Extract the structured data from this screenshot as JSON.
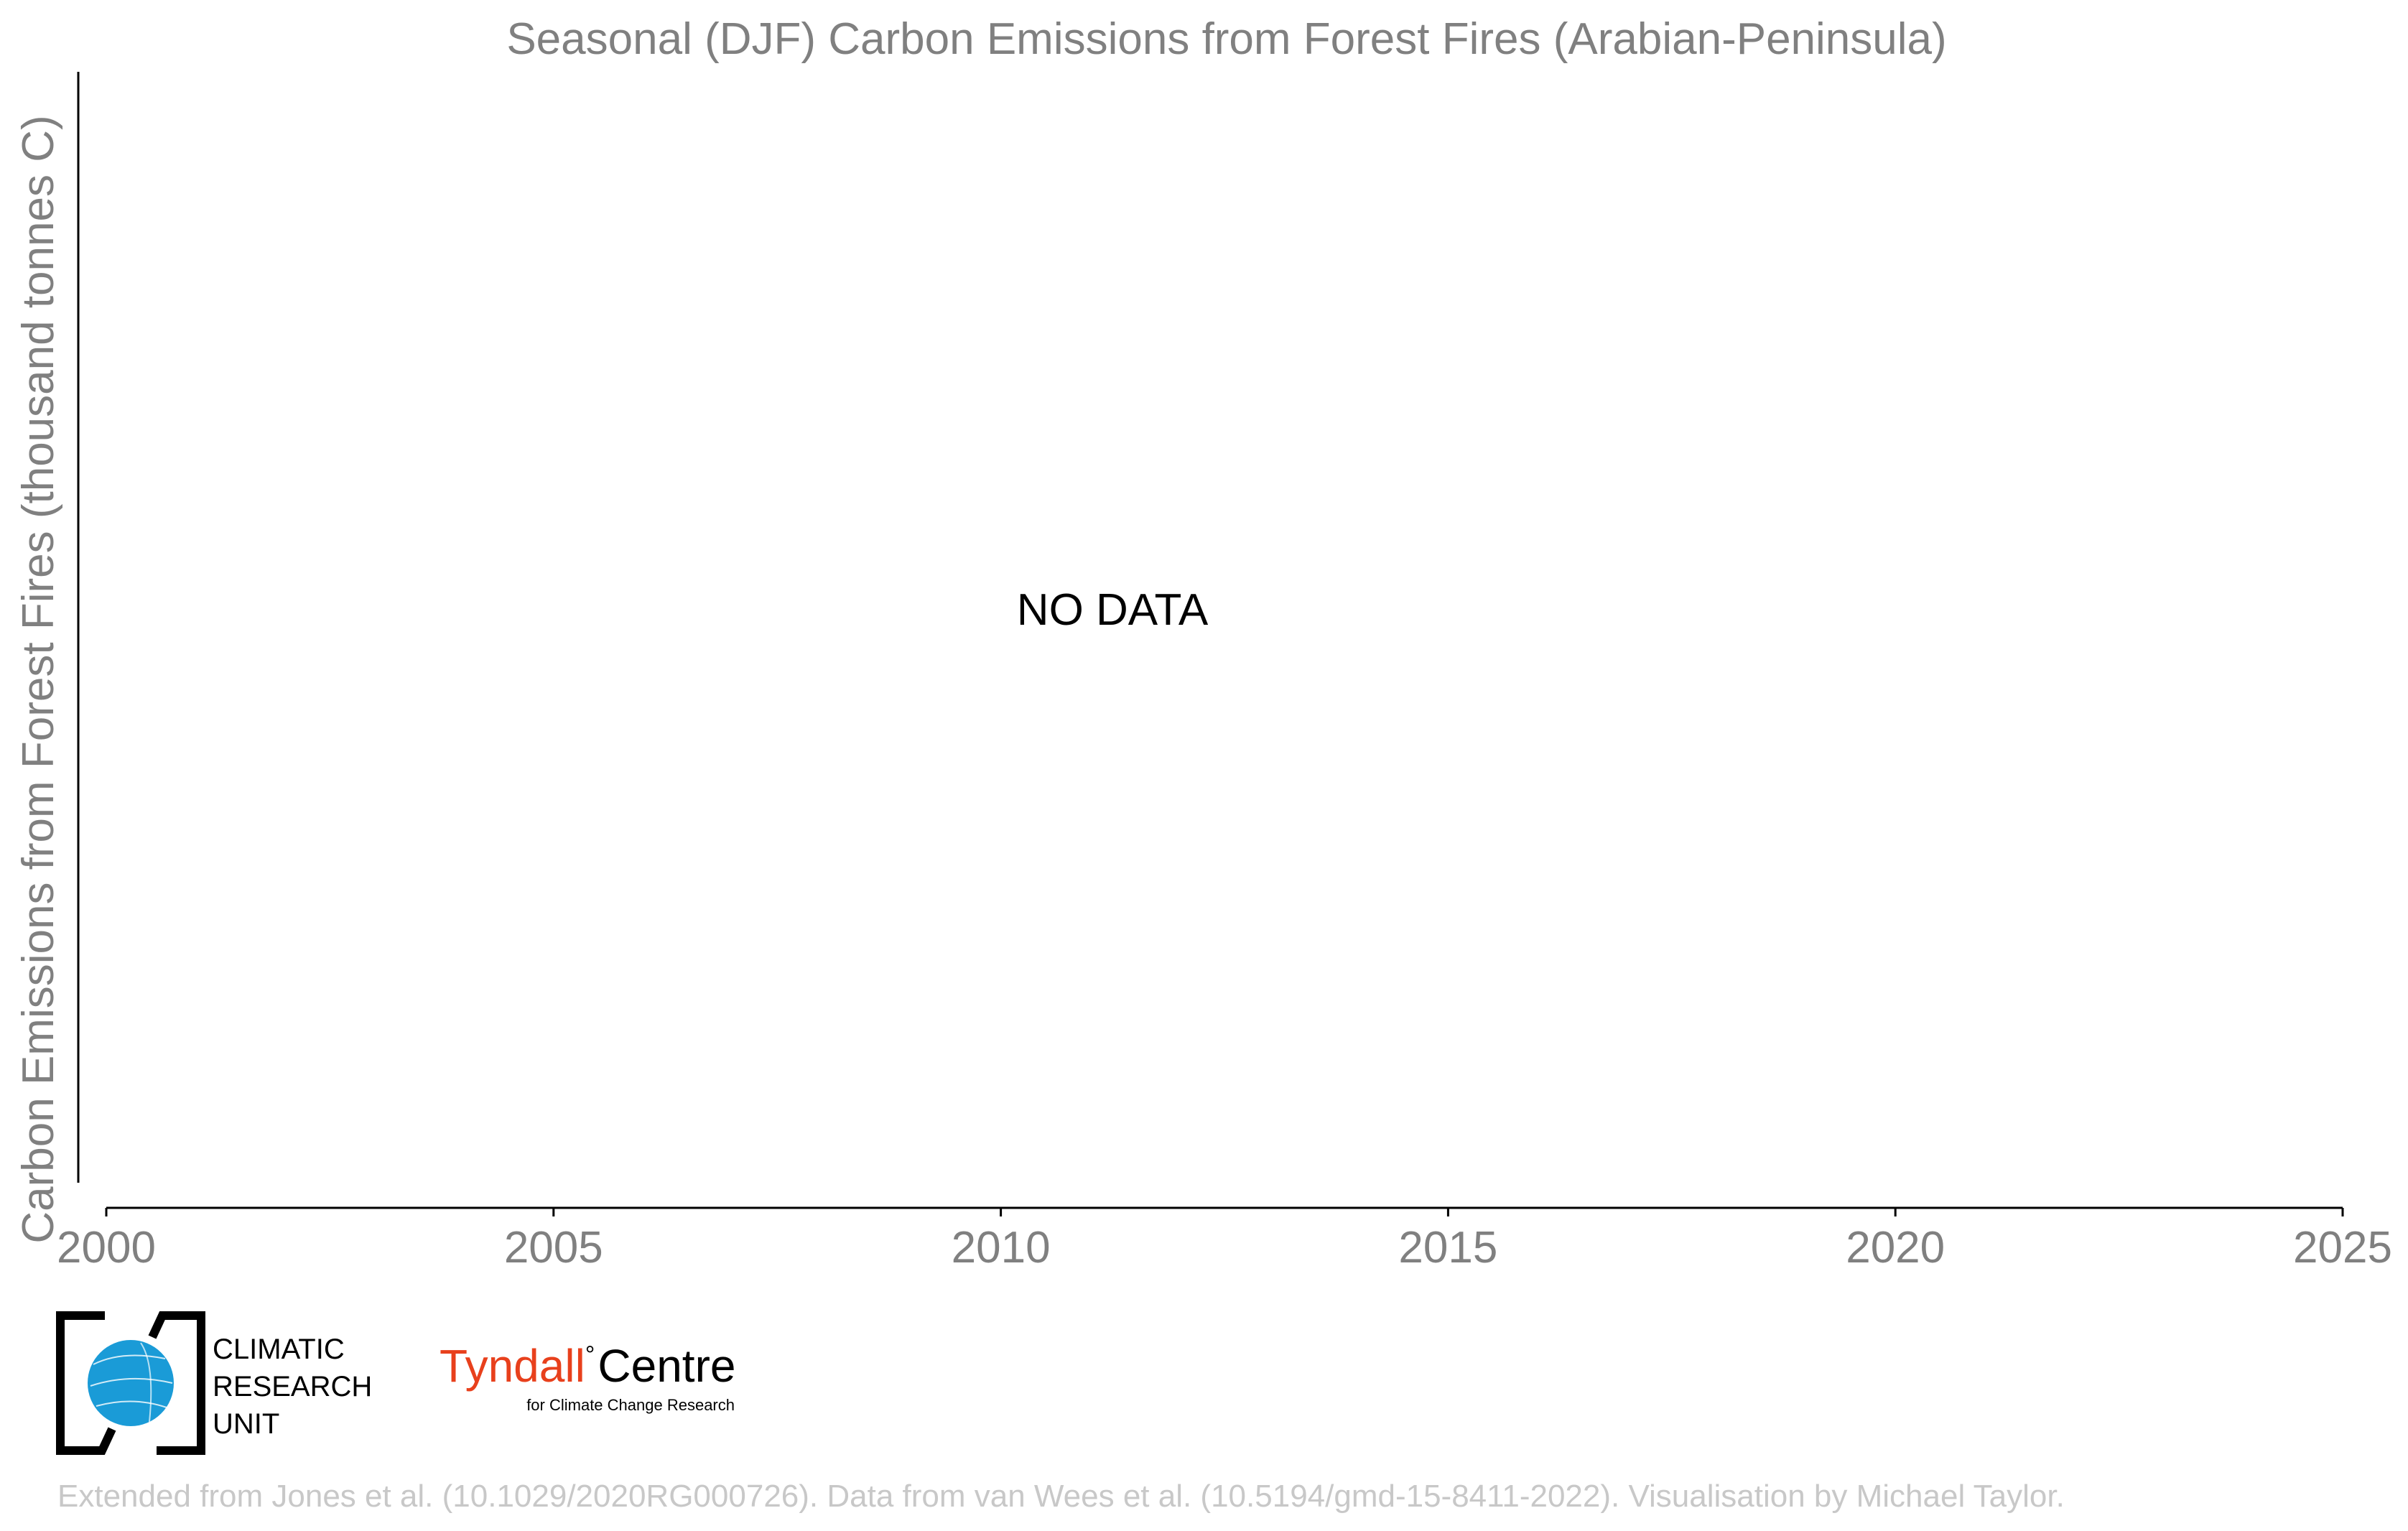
{
  "chart_data": {
    "type": "line",
    "title": "Seasonal (DJF) Carbon Emissions from Forest Fires (Arabian-Peninsula)",
    "xlabel": "",
    "ylabel": "Carbon Emissions from Forest Fires (thousand tonnes C)",
    "xlim": [
      2000,
      2025
    ],
    "x_ticks": [
      2000,
      2005,
      2010,
      2015,
      2020,
      2025
    ],
    "x_tick_labels": [
      "2000",
      "2005",
      "2010",
      "2015",
      "2020",
      "2025"
    ],
    "series": [],
    "annotation": "NO DATA",
    "grid": false
  },
  "logos": {
    "cru": {
      "line1": "CLIMATIC",
      "line2": "RESEARCH",
      "line3": "UNIT"
    },
    "tyndall": {
      "name": "Tyndall",
      "degree": "°",
      "centre": "Centre",
      "subtitle": "for Climate Change Research"
    }
  },
  "footer": "Extended from Jones et al. (10.1029/2020RG000726). Data from van Wees et al. (10.5194/gmd-15-8411-2022). Visualisation by Michael Taylor.",
  "colors": {
    "text_grey": "#808080",
    "footer_grey": "#c8c8c8",
    "axis": "#000000",
    "tyndall_red": "#e8401c",
    "globe_blue": "#1a9bd7"
  }
}
